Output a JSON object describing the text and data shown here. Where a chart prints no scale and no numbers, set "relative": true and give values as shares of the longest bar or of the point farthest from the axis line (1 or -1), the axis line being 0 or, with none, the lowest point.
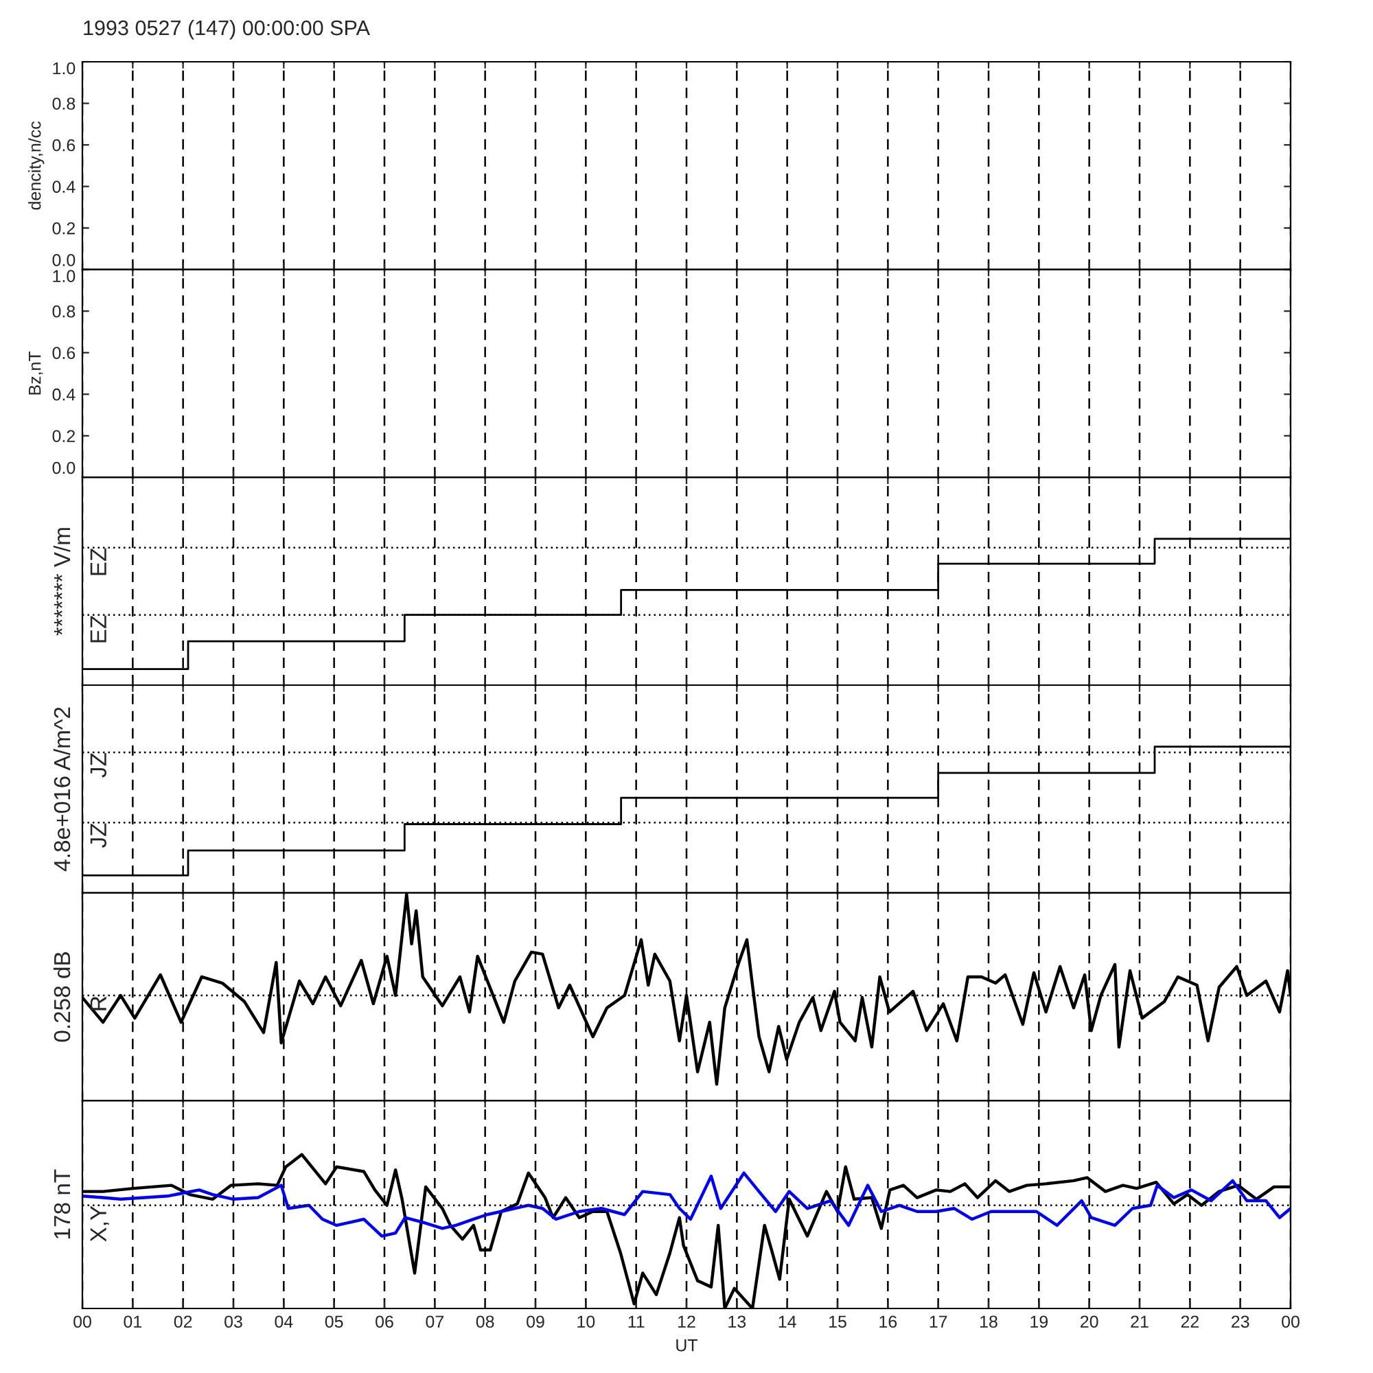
{
  "chart_data": [
    {
      "type": "line",
      "title": "1993 0527 (147) 00:00:00 SPA",
      "ylabel": "dencity,n/cc",
      "xlim": [
        0,
        24
      ],
      "xticks": [
        0,
        1,
        2,
        3,
        4,
        5,
        6,
        7,
        8,
        9,
        10,
        11,
        12,
        13,
        14,
        15,
        16,
        17,
        18,
        19,
        20,
        21,
        22,
        23,
        24
      ],
      "ylim": [
        0,
        1
      ],
      "yticks": [
        {
          "value": 0,
          "label": "0.0"
        },
        {
          "value": 0.2,
          "label": "0.2"
        },
        {
          "value": 0.4,
          "label": "0.4"
        },
        {
          "value": 0.6,
          "label": "0.6"
        },
        {
          "value": 0.8,
          "label": "0.8"
        },
        {
          "value": 1,
          "label": "1.0"
        }
      ],
      "grid": "x",
      "tick_labels": "y"
    },
    {
      "type": "line",
      "ylabel": "Bz,nT",
      "xlim": [
        0,
        24
      ],
      "xticks": [
        0,
        1,
        2,
        3,
        4,
        5,
        6,
        7,
        8,
        9,
        10,
        11,
        12,
        13,
        14,
        15,
        16,
        17,
        18,
        19,
        20,
        21,
        22,
        23,
        24
      ],
      "ylim": [
        0,
        1
      ],
      "yticks": [
        {
          "value": 0,
          "label": "0.0"
        },
        {
          "value": 0.2,
          "label": "0.2"
        },
        {
          "value": 0.4,
          "label": "0.4"
        },
        {
          "value": 0.6,
          "label": "0.6"
        },
        {
          "value": 0.8,
          "label": "0.8"
        },
        {
          "value": 1,
          "label": "1.0"
        }
      ],
      "grid": "x",
      "tick_labels": "y"
    },
    {
      "type": "step",
      "ylabel": "******* V/m",
      "relative": true,
      "xlim": [
        0,
        24
      ],
      "xticks": [
        0,
        1,
        2,
        3,
        4,
        5,
        6,
        7,
        8,
        9,
        10,
        11,
        12,
        13,
        14,
        15,
        16,
        17,
        18,
        19,
        20,
        21,
        22,
        23,
        24
      ],
      "grid": "x",
      "tick_labels": false,
      "ref_lines": [
        {
          "axis": "y",
          "value": 0.94,
          "label": "EZ",
          "line_style": "dotted"
        },
        {
          "axis": "y",
          "value": 0.48,
          "label": "EZ",
          "line_style": "dotted"
        }
      ],
      "series": [
        {
          "color": "#000000",
          "x": [
            0,
            2.1,
            6.4,
            10.7,
            17,
            21.3,
            24
          ],
          "values": [
            0.11,
            0.3,
            0.48,
            0.65,
            0.83,
            1.0,
            1.0
          ]
        }
      ]
    },
    {
      "type": "step",
      "ylabel": "4.8e+016 A/m^2",
      "relative": true,
      "xlim": [
        0,
        24
      ],
      "xticks": [
        0,
        1,
        2,
        3,
        4,
        5,
        6,
        7,
        8,
        9,
        10,
        11,
        12,
        13,
        14,
        15,
        16,
        17,
        18,
        19,
        20,
        21,
        22,
        23,
        24
      ],
      "grid": "x",
      "tick_labels": false,
      "ref_lines": [
        {
          "axis": "y",
          "value": 0.96,
          "label": "JZ",
          "line_style": "dotted"
        },
        {
          "axis": "y",
          "value": 0.48,
          "label": "JZ",
          "line_style": "dotted"
        }
      ],
      "series": [
        {
          "color": "#000000",
          "x": [
            0,
            2.1,
            6.4,
            10.7,
            17,
            21.3,
            24
          ],
          "values": [
            0.12,
            0.29,
            0.47,
            0.65,
            0.82,
            1.0,
            1.0
          ]
        }
      ]
    },
    {
      "type": "line",
      "ylabel": "0.258 dB",
      "relative": true,
      "xlim": [
        0,
        24
      ],
      "xticks": [
        0,
        1,
        2,
        3,
        4,
        5,
        6,
        7,
        8,
        9,
        10,
        11,
        12,
        13,
        14,
        15,
        16,
        17,
        18,
        19,
        20,
        21,
        22,
        23,
        24
      ],
      "grid": "x",
      "tick_labels": false,
      "ref_lines": [
        {
          "axis": "y",
          "value": 0.51,
          "label": "R",
          "line_style": "dotted"
        }
      ],
      "series": [
        {
          "color": "#000000",
          "x": [
            0,
            0.41,
            0.76,
            1.04,
            1.55,
            1.96,
            2.37,
            2.78,
            3.22,
            3.6,
            3.85,
            3.95,
            4.31,
            4.58,
            4.83,
            5.13,
            5.54,
            5.78,
            6.05,
            6.22,
            6.44,
            6.54,
            6.63,
            6.76,
            7.15,
            7.5,
            7.69,
            7.85,
            8.37,
            8.59,
            8.92,
            9.14,
            9.46,
            9.68,
            10.14,
            10.42,
            10.77,
            11.1,
            11.24,
            11.37,
            11.67,
            11.86,
            12.0,
            12.22,
            12.46,
            12.6,
            12.76,
            13.04,
            13.2,
            13.31,
            13.44,
            13.64,
            13.83,
            13.99,
            14.24,
            14.51,
            14.67,
            14.94,
            15.05,
            15.35,
            15.49,
            15.68,
            15.84,
            16.03,
            16.5,
            16.77,
            17.1,
            17.37,
            17.59,
            17.86,
            18.14,
            18.33,
            18.68,
            18.9,
            19.14,
            19.42,
            19.69,
            19.91,
            20.04,
            20.23,
            20.51,
            20.59,
            20.81,
            21.05,
            21.49,
            21.76,
            22.14,
            22.36,
            22.58,
            22.93,
            23.13,
            23.51,
            23.78,
            23.94,
            24.0
          ],
          "values": [
            0.5,
            0.38,
            0.51,
            0.4,
            0.61,
            0.38,
            0.6,
            0.57,
            0.48,
            0.33,
            0.67,
            0.28,
            0.58,
            0.47,
            0.6,
            0.46,
            0.68,
            0.47,
            0.7,
            0.51,
            1.0,
            0.76,
            0.92,
            0.6,
            0.46,
            0.6,
            0.43,
            0.7,
            0.38,
            0.58,
            0.72,
            0.71,
            0.45,
            0.56,
            0.31,
            0.45,
            0.51,
            0.78,
            0.56,
            0.71,
            0.58,
            0.29,
            0.51,
            0.14,
            0.38,
            0.08,
            0.45,
            0.67,
            0.78,
            0.56,
            0.31,
            0.14,
            0.36,
            0.2,
            0.38,
            0.5,
            0.34,
            0.53,
            0.38,
            0.29,
            0.5,
            0.26,
            0.6,
            0.43,
            0.53,
            0.34,
            0.47,
            0.29,
            0.6,
            0.6,
            0.57,
            0.61,
            0.37,
            0.62,
            0.43,
            0.65,
            0.45,
            0.61,
            0.34,
            0.51,
            0.66,
            0.26,
            0.63,
            0.4,
            0.48,
            0.6,
            0.56,
            0.29,
            0.55,
            0.65,
            0.51,
            0.58,
            0.43,
            0.63,
            0.51
          ]
        }
      ]
    },
    {
      "type": "line",
      "ylabel": "178 nT",
      "xlabel": "UT",
      "relative": true,
      "xlim": [
        0,
        24
      ],
      "xticks": [
        {
          "value": 0,
          "label": "00"
        },
        {
          "value": 1,
          "label": "01"
        },
        {
          "value": 2,
          "label": "02"
        },
        {
          "value": 3,
          "label": "03"
        },
        {
          "value": 4,
          "label": "04"
        },
        {
          "value": 5,
          "label": "05"
        },
        {
          "value": 6,
          "label": "06"
        },
        {
          "value": 7,
          "label": "07"
        },
        {
          "value": 8,
          "label": "08"
        },
        {
          "value": 9,
          "label": "09"
        },
        {
          "value": 10,
          "label": "10"
        },
        {
          "value": 11,
          "label": "11"
        },
        {
          "value": 12,
          "label": "12"
        },
        {
          "value": 13,
          "label": "13"
        },
        {
          "value": 14,
          "label": "14"
        },
        {
          "value": 15,
          "label": "15"
        },
        {
          "value": 16,
          "label": "16"
        },
        {
          "value": 17,
          "label": "17"
        },
        {
          "value": 18,
          "label": "18"
        },
        {
          "value": 19,
          "label": "19"
        },
        {
          "value": 20,
          "label": "20"
        },
        {
          "value": 21,
          "label": "21"
        },
        {
          "value": 22,
          "label": "22"
        },
        {
          "value": 23,
          "label": "23"
        },
        {
          "value": 24,
          "label": "00"
        }
      ],
      "grid": "x",
      "tick_labels": "x",
      "ref_lines": [
        {
          "axis": "y",
          "value": 0.67,
          "label": "X,Y",
          "line_style": "dotted"
        }
      ],
      "series": [
        {
          "color": "#000000",
          "x": [
            0,
            0.41,
            1.01,
            1.77,
            2.13,
            2.59,
            2.95,
            3.49,
            3.87,
            4.04,
            4.36,
            4.83,
            5.05,
            5.59,
            5.81,
            6.05,
            6.22,
            6.35,
            6.6,
            6.82,
            7.15,
            7.31,
            7.55,
            7.77,
            7.91,
            8.1,
            8.32,
            8.64,
            8.86,
            9.19,
            9.35,
            9.6,
            9.87,
            10.14,
            10.42,
            10.69,
            10.96,
            11.13,
            11.4,
            11.67,
            11.86,
            11.94,
            12.22,
            12.49,
            12.63,
            12.76,
            12.95,
            13.31,
            13.55,
            13.69,
            13.85,
            14.04,
            14.4,
            14.78,
            15.0,
            15.16,
            15.33,
            15.68,
            15.87,
            16.04,
            16.31,
            16.58,
            16.96,
            17.24,
            17.53,
            17.78,
            18.14,
            18.41,
            18.76,
            19.14,
            19.69,
            19.96,
            20.32,
            20.67,
            20.94,
            21.33,
            21.68,
            21.95,
            22.23,
            22.58,
            22.96,
            23.32,
            23.67,
            24.0
          ],
          "values": [
            0.76,
            0.76,
            0.78,
            0.8,
            0.74,
            0.71,
            0.8,
            0.81,
            0.8,
            0.92,
            1.0,
            0.81,
            0.92,
            0.89,
            0.77,
            0.67,
            0.9,
            0.71,
            0.23,
            0.79,
            0.65,
            0.54,
            0.45,
            0.54,
            0.38,
            0.38,
            0.63,
            0.68,
            0.88,
            0.72,
            0.59,
            0.72,
            0.59,
            0.63,
            0.63,
            0.36,
            0.03,
            0.23,
            0.09,
            0.36,
            0.59,
            0.41,
            0.18,
            0.14,
            0.54,
            0.0,
            0.13,
            0.0,
            0.54,
            0.38,
            0.19,
            0.71,
            0.47,
            0.76,
            0.63,
            0.92,
            0.71,
            0.72,
            0.52,
            0.77,
            0.8,
            0.72,
            0.77,
            0.76,
            0.81,
            0.72,
            0.83,
            0.76,
            0.8,
            0.81,
            0.83,
            0.85,
            0.76,
            0.8,
            0.78,
            0.82,
            0.68,
            0.74,
            0.67,
            0.76,
            0.8,
            0.71,
            0.79,
            0.79
          ]
        },
        {
          "color": "#0000ff",
          "x": [
            0,
            0.41,
            0.76,
            1.23,
            1.69,
            2.32,
            2.59,
            3.0,
            3.49,
            3.95,
            4.09,
            4.5,
            4.77,
            5.05,
            5.59,
            5.95,
            6.22,
            6.41,
            6.76,
            7.15,
            7.42,
            7.77,
            8.04,
            8.32,
            8.86,
            9.14,
            9.41,
            9.87,
            10.31,
            10.77,
            11.13,
            11.67,
            11.86,
            12.08,
            12.49,
            12.68,
            13.14,
            13.44,
            13.77,
            14.04,
            14.4,
            14.86,
            15.22,
            15.6,
            15.87,
            16.23,
            16.58,
            16.96,
            17.32,
            17.67,
            18.05,
            18.49,
            18.95,
            19.36,
            19.85,
            20.04,
            20.51,
            20.86,
            21.22,
            21.35,
            21.68,
            22.03,
            22.42,
            22.85,
            23.13,
            23.51,
            23.78,
            24.0
          ],
          "values": [
            0.73,
            0.72,
            0.71,
            0.72,
            0.73,
            0.77,
            0.74,
            0.71,
            0.72,
            0.8,
            0.65,
            0.67,
            0.58,
            0.54,
            0.58,
            0.47,
            0.49,
            0.59,
            0.56,
            0.52,
            0.54,
            0.58,
            0.61,
            0.63,
            0.67,
            0.65,
            0.58,
            0.63,
            0.65,
            0.61,
            0.76,
            0.74,
            0.65,
            0.58,
            0.86,
            0.65,
            0.88,
            0.76,
            0.63,
            0.76,
            0.65,
            0.7,
            0.54,
            0.8,
            0.63,
            0.67,
            0.63,
            0.63,
            0.65,
            0.58,
            0.63,
            0.63,
            0.63,
            0.54,
            0.7,
            0.59,
            0.54,
            0.65,
            0.67,
            0.8,
            0.72,
            0.77,
            0.7,
            0.83,
            0.7,
            0.7,
            0.59,
            0.65
          ]
        }
      ]
    }
  ]
}
